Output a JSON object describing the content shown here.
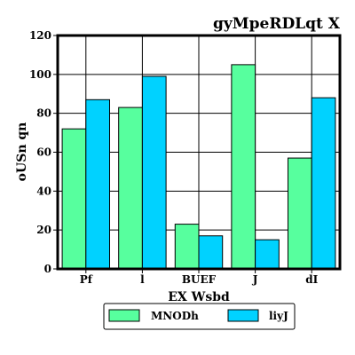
{
  "chart_data": {
    "type": "bar",
    "title": "gyMpeRDLqt X",
    "xlabel": "EX Wsbd",
    "ylabel": "oUSn qn",
    "categories": [
      "Pf",
      "l",
      "BUEF",
      "J",
      "dI"
    ],
    "series": [
      {
        "name": "MNODh",
        "color": "#57ff9e",
        "values": [
          72,
          83,
          23,
          105,
          57
        ]
      },
      {
        "name": "liyJ",
        "color": "#00d2ff",
        "values": [
          87,
          99,
          17,
          15,
          88
        ]
      }
    ],
    "ylim": [
      0,
      120
    ],
    "yticks": [
      0,
      20,
      40,
      60,
      80,
      100,
      120
    ],
    "grid": true,
    "legend_position": "bottom-center"
  }
}
